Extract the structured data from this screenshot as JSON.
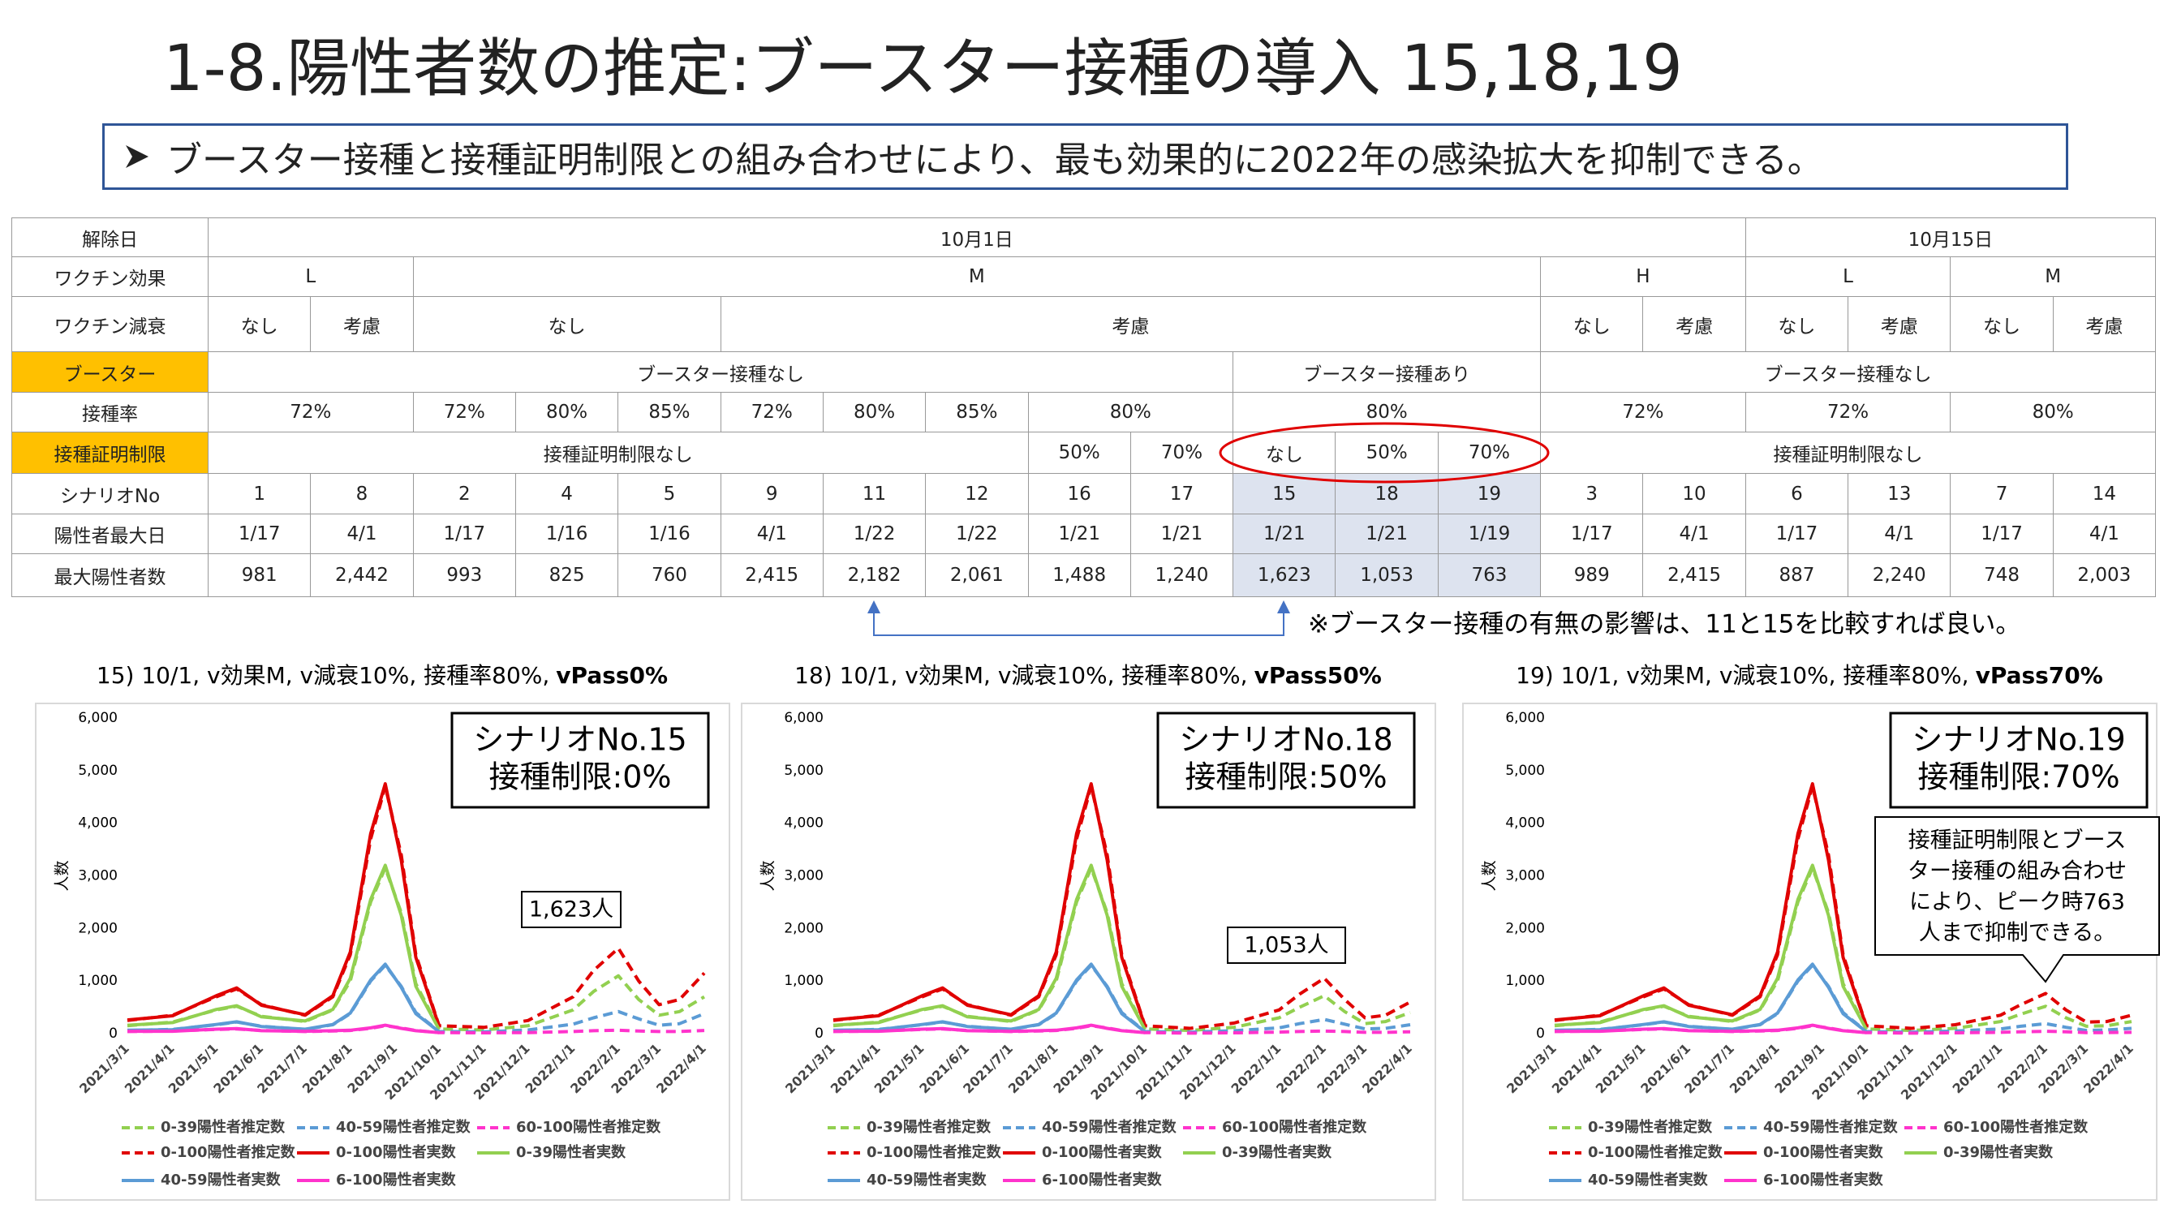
{
  "title": "1-8.陽性者数の推定:ブースター接種の導入 15,18,19",
  "bullet": "ブースター接種と接種証明制限との組み合わせにより、最も効果的に2022年の感染拡大を抑制できる。",
  "table": {
    "rows": [
      [
        "解除日",
        "10月1日",
        "10月15日"
      ],
      [
        "ワクチン効果",
        "L",
        "M",
        "H",
        "L",
        "M"
      ],
      [
        "ワクチン減衰",
        "なし",
        "考慮",
        "なし",
        "考慮",
        "なし",
        "考慮",
        "なし",
        "考慮",
        "なし",
        "考慮"
      ],
      [
        "ブースター",
        "ブースター接種なし",
        "ブースター接種あり",
        "ブースター接種なし"
      ],
      [
        "接種率",
        "72%",
        "72%",
        "80%",
        "85%",
        "72%",
        "80%",
        "85%",
        "80%",
        "80%",
        "72%",
        "72%",
        "80%"
      ],
      [
        "接種証明制限",
        "接種証明制限なし",
        "50%",
        "70%",
        "なし",
        "50%",
        "70%",
        "接種証明制限なし"
      ],
      [
        "シナリオNo",
        "1",
        "8",
        "2",
        "4",
        "5",
        "9",
        "11",
        "12",
        "16",
        "17",
        "15",
        "18",
        "19",
        "3",
        "10",
        "6",
        "13",
        "7",
        "14"
      ],
      [
        "陽性者最大日",
        "1/17",
        "4/1",
        "1/17",
        "1/16",
        "1/16",
        "4/1",
        "1/22",
        "1/22",
        "1/21",
        "1/21",
        "1/21",
        "1/21",
        "1/19",
        "1/17",
        "4/1",
        "1/17",
        "4/1",
        "1/17",
        "4/1"
      ],
      [
        "最大陽性者数",
        "981",
        "2,442",
        "993",
        "825",
        "760",
        "2,415",
        "2,182",
        "2,061",
        "1,488",
        "1,240",
        "1,623",
        "1,053",
        "763",
        "989",
        "2,415",
        "887",
        "2,240",
        "748",
        "2,003"
      ]
    ]
  },
  "note": "※ブースター接種の有無の影響は、11と15を比較すれば良い。",
  "chart_data": [
    {
      "type": "line",
      "title": "15) 10/1, v効果M, v減衰10%, 接種率80%,",
      "title_bold": "vPass0%",
      "callout": [
        "シナリオNo.15",
        "接種制限:0%"
      ],
      "annotation": [
        "1,623人"
      ],
      "ylabel": "人数",
      "x": [
        "2021/3/1",
        "2021/4/1",
        "2021/5/1",
        "2021/5/15",
        "2021/6/1",
        "2021/7/1",
        "2021/7/20",
        "2021/8/1",
        "2021/8/15",
        "2021/8/25",
        "2021/9/5",
        "2021/9/15",
        "2021/10/1",
        "2021/11/1",
        "2021/12/1",
        "2022/1/1",
        "2022/1/15",
        "2022/2/1",
        "2022/2/15",
        "2022/3/1",
        "2022/3/15",
        "2022/4/1"
      ],
      "xlim": [
        "2021/3/1",
        "2022/4/1"
      ],
      "xticks": [
        "2021/3/1",
        "2021/4/1",
        "2021/5/1",
        "2021/6/1",
        "2021/7/1",
        "2021/8/1",
        "2021/9/1",
        "2021/10/1",
        "2021/11/1",
        "2021/12/1",
        "2022/1/1",
        "2022/2/1",
        "2022/3/1",
        "2022/4/1"
      ],
      "ylim": [
        0,
        6000
      ],
      "yticks": [
        0,
        {
          "value": 1000,
          "label": "1,000"
        },
        {
          "value": 2000,
          "label": "2,000"
        },
        {
          "value": 3000,
          "label": "3,000"
        },
        {
          "value": 4000,
          "label": "4,000"
        },
        {
          "value": 5000,
          "label": "5,000"
        },
        {
          "value": 6000,
          "label": "6,000"
        }
      ],
      "series": [
        {
          "name": "0-39陽性者推定数",
          "color": "#92d050",
          "dash": true,
          "values": [
            150,
            220,
            450,
            520,
            330,
            230,
            450,
            1000,
            2500,
            3150,
            2300,
            950,
            90,
            70,
            150,
            450,
            800,
            1100,
            650,
            350,
            420,
            700
          ]
        },
        {
          "name": "40-59陽性者推定数",
          "color": "#5b9bd5",
          "dash": true,
          "values": [
            60,
            80,
            170,
            220,
            140,
            80,
            170,
            380,
            1000,
            1300,
            900,
            400,
            40,
            35,
            70,
            180,
            300,
            420,
            280,
            160,
            190,
            380
          ]
        },
        {
          "name": "60-100陽性者推定数",
          "color": "#ff33cc",
          "dash": true,
          "values": [
            40,
            50,
            80,
            90,
            60,
            40,
            50,
            60,
            100,
            150,
            110,
            60,
            20,
            15,
            20,
            40,
            55,
            65,
            50,
            40,
            40,
            60
          ]
        },
        {
          "name": "0-100陽性者推定数",
          "color": "#e00000",
          "dash": true,
          "values": [
            250,
            350,
            700,
            850,
            550,
            350,
            700,
            1500,
            3700,
            4700,
            3400,
            1500,
            150,
            120,
            250,
            700,
            1200,
            1623,
            1000,
            550,
            650,
            1150
          ]
        },
        {
          "name": "0-100陽性者実数",
          "color": "#e00000",
          "dash": false,
          "values": [
            260,
            340,
            720,
            870,
            540,
            360,
            720,
            1550,
            3800,
            4750,
            3300,
            1450,
            140,
            null,
            null,
            null,
            null,
            null,
            null,
            null,
            null,
            null
          ]
        },
        {
          "name": "0-39陽性者実数",
          "color": "#92d050",
          "dash": false,
          "values": [
            160,
            210,
            460,
            530,
            320,
            240,
            460,
            1050,
            2550,
            3200,
            2250,
            900,
            80,
            null,
            null,
            null,
            null,
            null,
            null,
            null,
            null,
            null
          ]
        },
        {
          "name": "40-59陽性者実数",
          "color": "#5b9bd5",
          "dash": false,
          "values": [
            65,
            75,
            175,
            225,
            135,
            85,
            175,
            390,
            1020,
            1320,
            880,
            380,
            35,
            null,
            null,
            null,
            null,
            null,
            null,
            null,
            null,
            null
          ]
        },
        {
          "name": "6-100陽性者実数",
          "color": "#ff33cc",
          "dash": false,
          "values": [
            45,
            45,
            85,
            95,
            55,
            45,
            55,
            65,
            110,
            160,
            100,
            55,
            20,
            null,
            null,
            null,
            null,
            null,
            null,
            null,
            null,
            null
          ]
        }
      ]
    },
    {
      "type": "line",
      "title": "18) 10/1, v効果M, v減衰10%, 接種率80%,",
      "title_bold": "vPass50%",
      "callout": [
        "シナリオNo.18",
        "接種制限:50%"
      ],
      "annotation": [
        "1,053人"
      ],
      "ylabel": "人数",
      "x": [
        "2021/3/1",
        "2021/4/1",
        "2021/5/1",
        "2021/5/15",
        "2021/6/1",
        "2021/7/1",
        "2021/7/20",
        "2021/8/1",
        "2021/8/15",
        "2021/8/25",
        "2021/9/5",
        "2021/9/15",
        "2021/10/1",
        "2021/11/1",
        "2021/12/1",
        "2022/1/1",
        "2022/1/15",
        "2022/2/1",
        "2022/2/15",
        "2022/3/1",
        "2022/3/15",
        "2022/4/1"
      ],
      "xlim": [
        "2021/3/1",
        "2022/4/1"
      ],
      "xticks": [
        "2021/3/1",
        "2021/4/1",
        "2021/5/1",
        "2021/6/1",
        "2021/7/1",
        "2021/8/1",
        "2021/9/1",
        "2021/10/1",
        "2021/11/1",
        "2021/12/1",
        "2022/1/1",
        "2022/2/1",
        "2022/3/1",
        "2022/4/1"
      ],
      "ylim": [
        0,
        6000
      ],
      "yticks": [
        0,
        {
          "value": 1000,
          "label": "1,000"
        },
        {
          "value": 2000,
          "label": "2,000"
        },
        {
          "value": 3000,
          "label": "3,000"
        },
        {
          "value": 4000,
          "label": "4,000"
        },
        {
          "value": 5000,
          "label": "5,000"
        },
        {
          "value": 6000,
          "label": "6,000"
        }
      ],
      "series": [
        {
          "name": "0-39陽性者推定数",
          "color": "#92d050",
          "dash": true,
          "values": [
            150,
            220,
            450,
            520,
            330,
            230,
            450,
            1000,
            2500,
            3150,
            2300,
            950,
            90,
            60,
            120,
            300,
            500,
            720,
            420,
            190,
            230,
            400
          ]
        },
        {
          "name": "40-59陽性者推定数",
          "color": "#5b9bd5",
          "dash": true,
          "values": [
            60,
            80,
            170,
            220,
            140,
            80,
            170,
            380,
            1000,
            1300,
            900,
            400,
            40,
            30,
            55,
            110,
            190,
            270,
            180,
            90,
            100,
            170
          ]
        },
        {
          "name": "60-100陽性者推定数",
          "color": "#ff33cc",
          "dash": true,
          "values": [
            40,
            50,
            80,
            90,
            60,
            40,
            50,
            60,
            100,
            150,
            110,
            60,
            20,
            10,
            15,
            30,
            40,
            50,
            40,
            25,
            25,
            35
          ]
        },
        {
          "name": "0-100陽性者推定数",
          "color": "#e00000",
          "dash": true,
          "values": [
            250,
            350,
            700,
            850,
            550,
            350,
            700,
            1500,
            3700,
            4700,
            3400,
            1500,
            150,
            100,
            200,
            450,
            750,
            1053,
            650,
            300,
            350,
            600
          ]
        },
        {
          "name": "0-100陽性者実数",
          "color": "#e00000",
          "dash": false,
          "values": [
            260,
            340,
            720,
            870,
            540,
            360,
            720,
            1550,
            3800,
            4750,
            3300,
            1450,
            140,
            null,
            null,
            null,
            null,
            null,
            null,
            null,
            null,
            null
          ]
        },
        {
          "name": "0-39陽性者実数",
          "color": "#92d050",
          "dash": false,
          "values": [
            160,
            210,
            460,
            530,
            320,
            240,
            460,
            1050,
            2550,
            3200,
            2250,
            900,
            80,
            null,
            null,
            null,
            null,
            null,
            null,
            null,
            null,
            null
          ]
        },
        {
          "name": "40-59陽性者実数",
          "color": "#5b9bd5",
          "dash": false,
          "values": [
            65,
            75,
            175,
            225,
            135,
            85,
            175,
            390,
            1020,
            1320,
            880,
            380,
            35,
            null,
            null,
            null,
            null,
            null,
            null,
            null,
            null,
            null
          ]
        },
        {
          "name": "6-100陽性者実数",
          "color": "#ff33cc",
          "dash": false,
          "values": [
            45,
            45,
            85,
            95,
            55,
            45,
            55,
            65,
            110,
            160,
            100,
            55,
            20,
            null,
            null,
            null,
            null,
            null,
            null,
            null,
            null,
            null
          ]
        }
      ]
    },
    {
      "type": "line",
      "title": "19) 10/1, v効果M, v減衰10%, 接種率80%,",
      "title_bold": "vPass70%",
      "callout": [
        "シナリオNo.19",
        "接種制限:70%"
      ],
      "annotation": [
        "接種証明制限とブース",
        "ター接種の組み合わせ",
        "により、ピーク時763",
        "人まで抑制できる。"
      ],
      "ylabel": "人数",
      "x": [
        "2021/3/1",
        "2021/4/1",
        "2021/5/1",
        "2021/5/15",
        "2021/6/1",
        "2021/7/1",
        "2021/7/20",
        "2021/8/1",
        "2021/8/15",
        "2021/8/25",
        "2021/9/5",
        "2021/9/15",
        "2021/10/1",
        "2021/11/1",
        "2021/12/1",
        "2022/1/1",
        "2022/1/15",
        "2022/2/1",
        "2022/2/15",
        "2022/3/1",
        "2022/3/15",
        "2022/4/1"
      ],
      "xlim": [
        "2021/3/1",
        "2022/4/1"
      ],
      "xticks": [
        "2021/3/1",
        "2021/4/1",
        "2021/5/1",
        "2021/6/1",
        "2021/7/1",
        "2021/8/1",
        "2021/9/1",
        "2021/10/1",
        "2021/11/1",
        "2021/12/1",
        "2022/1/1",
        "2022/2/1",
        "2022/3/1",
        "2022/4/1"
      ],
      "ylim": [
        0,
        6000
      ],
      "yticks": [
        0,
        {
          "value": 1000,
          "label": "1,000"
        },
        {
          "value": 2000,
          "label": "2,000"
        },
        {
          "value": 3000,
          "label": "3,000"
        },
        {
          "value": 4000,
          "label": "4,000"
        },
        {
          "value": 5000,
          "label": "5,000"
        },
        {
          "value": 6000,
          "label": "6,000"
        }
      ],
      "series": [
        {
          "name": "0-39陽性者推定数",
          "color": "#92d050",
          "dash": true,
          "values": [
            150,
            220,
            450,
            520,
            330,
            230,
            450,
            1000,
            2500,
            3150,
            2300,
            950,
            90,
            60,
            100,
            230,
            370,
            520,
            300,
            140,
            150,
            230
          ]
        },
        {
          "name": "40-59陽性者推定数",
          "color": "#5b9bd5",
          "dash": true,
          "values": [
            60,
            80,
            170,
            220,
            140,
            80,
            170,
            380,
            1000,
            1300,
            900,
            400,
            40,
            30,
            50,
            90,
            140,
            190,
            120,
            60,
            70,
            100
          ]
        },
        {
          "name": "60-100陽性者推定数",
          "color": "#ff33cc",
          "dash": true,
          "values": [
            40,
            50,
            80,
            90,
            60,
            40,
            50,
            60,
            100,
            150,
            110,
            60,
            20,
            10,
            15,
            25,
            35,
            45,
            35,
            20,
            20,
            25
          ]
        },
        {
          "name": "0-100陽性者推定数",
          "color": "#e00000",
          "dash": true,
          "values": [
            250,
            350,
            700,
            850,
            550,
            350,
            700,
            1500,
            3700,
            4700,
            3400,
            1500,
            150,
            100,
            170,
            350,
            550,
            763,
            450,
            220,
            230,
            350
          ]
        },
        {
          "name": "0-100陽性者実数",
          "color": "#e00000",
          "dash": false,
          "values": [
            260,
            340,
            720,
            870,
            540,
            360,
            720,
            1550,
            3800,
            4750,
            3300,
            1450,
            140,
            null,
            null,
            null,
            null,
            null,
            null,
            null,
            null,
            null
          ]
        },
        {
          "name": "0-39陽性者実数",
          "color": "#92d050",
          "dash": false,
          "values": [
            160,
            210,
            460,
            530,
            320,
            240,
            460,
            1050,
            2550,
            3200,
            2250,
            900,
            80,
            null,
            null,
            null,
            null,
            null,
            null,
            null,
            null,
            null
          ]
        },
        {
          "name": "40-59陽性者実数",
          "color": "#5b9bd5",
          "dash": false,
          "values": [
            65,
            75,
            175,
            225,
            135,
            85,
            175,
            390,
            1020,
            1320,
            880,
            380,
            35,
            null,
            null,
            null,
            null,
            null,
            null,
            null,
            null,
            null
          ]
        },
        {
          "name": "6-100陽性者実数",
          "color": "#ff33cc",
          "dash": false,
          "values": [
            45,
            45,
            85,
            95,
            55,
            45,
            55,
            65,
            110,
            160,
            100,
            55,
            20,
            null,
            null,
            null,
            null,
            null,
            null,
            null,
            null,
            null
          ]
        }
      ]
    }
  ]
}
